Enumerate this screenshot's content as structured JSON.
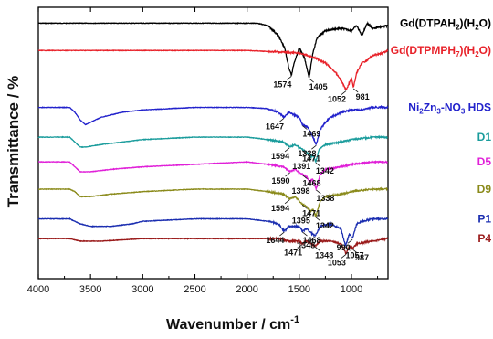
{
  "chart_data": {
    "type": "line",
    "xlabel": "Wavenumber / cm",
    "xlabel_superscript": "-1",
    "ylabel": "Transmittance / %",
    "xlim": [
      4000,
      650
    ],
    "x_direction": "reversed",
    "y_ticks_shown": false,
    "grid": false,
    "legend": "none — series named by colored text at right end of each trace",
    "x_ticks": [
      "4000",
      "3500",
      "3000",
      "2500",
      "2000",
      "1500",
      "1000"
    ],
    "x_tick_values": [
      4000,
      3500,
      3000,
      2500,
      2000,
      1500,
      1000
    ],
    "series": [
      {
        "name_parts": [
          {
            "t": "Gd(DTPAH"
          },
          {
            "t": "2",
            "sub": true
          },
          {
            "t": ")(H"
          },
          {
            "t": "2",
            "sub": true
          },
          {
            "t": "O)"
          }
        ],
        "color": "#000000",
        "baseline_y": 0.02,
        "shape": [
          [
            4000,
            0.02
          ],
          [
            1900,
            0.02
          ],
          [
            1800,
            0.03
          ],
          [
            1700,
            0.07
          ],
          [
            1640,
            0.12
          ],
          [
            1600,
            0.2
          ],
          [
            1574,
            0.23
          ],
          [
            1550,
            0.18
          ],
          [
            1500,
            0.12
          ],
          [
            1450,
            0.16
          ],
          [
            1405,
            0.24
          ],
          [
            1370,
            0.14
          ],
          [
            1330,
            0.08
          ],
          [
            1250,
            0.05
          ],
          [
            1100,
            0.04
          ],
          [
            1000,
            0.05
          ],
          [
            950,
            0.03
          ],
          [
            900,
            0.07
          ],
          [
            850,
            0.02
          ],
          [
            800,
            0.04
          ],
          [
            650,
            0.03
          ]
        ],
        "peaks": [
          {
            "label": "1574"
          },
          {
            "label": "1405"
          }
        ]
      },
      {
        "name_parts": [
          {
            "t": "Gd(DTPMPH"
          },
          {
            "t": "7",
            "sub": true
          },
          {
            "t": ")(H"
          },
          {
            "t": "2",
            "sub": true
          },
          {
            "t": "O)"
          }
        ],
        "color": "#e8222a",
        "baseline_y": 0.13,
        "shape": [
          [
            4000,
            0.13
          ],
          [
            2000,
            0.13
          ],
          [
            1500,
            0.14
          ],
          [
            1350,
            0.16
          ],
          [
            1250,
            0.18
          ],
          [
            1150,
            0.22
          ],
          [
            1100,
            0.25
          ],
          [
            1052,
            0.29
          ],
          [
            1030,
            0.27
          ],
          [
            1000,
            0.24
          ],
          [
            981,
            0.28
          ],
          [
            950,
            0.22
          ],
          [
            900,
            0.18
          ],
          [
            850,
            0.17
          ],
          [
            800,
            0.15
          ],
          [
            700,
            0.14
          ],
          [
            650,
            0.13
          ]
        ],
        "peaks": [
          {
            "label": "1052"
          },
          {
            "label": "981"
          }
        ]
      },
      {
        "name_parts": [
          {
            "t": "Ni"
          },
          {
            "t": "2",
            "sub": true
          },
          {
            "t": "Zn"
          },
          {
            "t": "3",
            "sub": true
          },
          {
            "t": "-NO"
          },
          {
            "t": "3",
            "sub": true
          },
          {
            "t": " HDS"
          }
        ],
        "color": "#2222cc",
        "baseline_y": 0.36,
        "shape": [
          [
            4000,
            0.36
          ],
          [
            3700,
            0.36
          ],
          [
            3650,
            0.38
          ],
          [
            3600,
            0.41
          ],
          [
            3550,
            0.43
          ],
          [
            3500,
            0.42
          ],
          [
            3400,
            0.4
          ],
          [
            3200,
            0.38
          ],
          [
            3000,
            0.37
          ],
          [
            2500,
            0.36
          ],
          [
            2000,
            0.36
          ],
          [
            1800,
            0.365
          ],
          [
            1700,
            0.38
          ],
          [
            1647,
            0.4
          ],
          [
            1600,
            0.38
          ],
          [
            1500,
            0.4
          ],
          [
            1469,
            0.43
          ],
          [
            1420,
            0.44
          ],
          [
            1380,
            0.47
          ],
          [
            1338,
            0.51
          ],
          [
            1300,
            0.45
          ],
          [
            1250,
            0.42
          ],
          [
            1200,
            0.4
          ],
          [
            1100,
            0.38
          ],
          [
            1000,
            0.37
          ],
          [
            900,
            0.37
          ],
          [
            800,
            0.36
          ],
          [
            650,
            0.36
          ]
        ],
        "peaks": [
          {
            "label": "1647"
          },
          {
            "label": "1469"
          },
          {
            "label": "1338"
          }
        ]
      },
      {
        "name_parts": [
          {
            "t": "D1"
          }
        ],
        "color": "#1a9c9c",
        "baseline_y": 0.48,
        "shape": [
          [
            4000,
            0.48
          ],
          [
            3700,
            0.48
          ],
          [
            3650,
            0.5
          ],
          [
            3600,
            0.52
          ],
          [
            3550,
            0.52
          ],
          [
            3400,
            0.51
          ],
          [
            3200,
            0.5
          ],
          [
            3000,
            0.49
          ],
          [
            2500,
            0.48
          ],
          [
            2000,
            0.48
          ],
          [
            1800,
            0.49
          ],
          [
            1650,
            0.5
          ],
          [
            1594,
            0.52
          ],
          [
            1540,
            0.51
          ],
          [
            1471,
            0.53
          ],
          [
            1430,
            0.54
          ],
          [
            1391,
            0.56
          ],
          [
            1370,
            0.55
          ],
          [
            1342,
            0.58
          ],
          [
            1310,
            0.53
          ],
          [
            1250,
            0.51
          ],
          [
            1100,
            0.5
          ],
          [
            1000,
            0.49
          ],
          [
            800,
            0.48
          ],
          [
            650,
            0.48
          ]
        ],
        "peaks": [
          {
            "label": "1594"
          },
          {
            "label": "1471"
          },
          {
            "label": "1391"
          },
          {
            "label": "1342"
          }
        ]
      },
      {
        "name_parts": [
          {
            "t": "D5"
          }
        ],
        "color": "#e020d8",
        "baseline_y": 0.58,
        "shape": [
          [
            4000,
            0.58
          ],
          [
            3700,
            0.58
          ],
          [
            3650,
            0.6
          ],
          [
            3600,
            0.62
          ],
          [
            3500,
            0.62
          ],
          [
            3300,
            0.61
          ],
          [
            3000,
            0.6
          ],
          [
            2500,
            0.59
          ],
          [
            2000,
            0.58
          ],
          [
            1800,
            0.59
          ],
          [
            1650,
            0.6
          ],
          [
            1590,
            0.62
          ],
          [
            1540,
            0.61
          ],
          [
            1468,
            0.63
          ],
          [
            1430,
            0.64
          ],
          [
            1398,
            0.66
          ],
          [
            1370,
            0.65
          ],
          [
            1338,
            0.69
          ],
          [
            1300,
            0.63
          ],
          [
            1250,
            0.61
          ],
          [
            1100,
            0.6
          ],
          [
            1000,
            0.59
          ],
          [
            800,
            0.58
          ],
          [
            650,
            0.58
          ]
        ],
        "peaks": [
          {
            "label": "1590"
          },
          {
            "label": "1468"
          },
          {
            "label": "1398"
          },
          {
            "label": "1338"
          }
        ]
      },
      {
        "name_parts": [
          {
            "t": "D9"
          }
        ],
        "color": "#8a8a1a",
        "baseline_y": 0.69,
        "shape": [
          [
            4000,
            0.69
          ],
          [
            3700,
            0.69
          ],
          [
            3650,
            0.7
          ],
          [
            3600,
            0.72
          ],
          [
            3500,
            0.72
          ],
          [
            3300,
            0.71
          ],
          [
            3000,
            0.7
          ],
          [
            2500,
            0.69
          ],
          [
            2000,
            0.69
          ],
          [
            1800,
            0.7
          ],
          [
            1650,
            0.71
          ],
          [
            1594,
            0.73
          ],
          [
            1540,
            0.72
          ],
          [
            1471,
            0.75
          ],
          [
            1430,
            0.76
          ],
          [
            1395,
            0.78
          ],
          [
            1370,
            0.77
          ],
          [
            1342,
            0.8
          ],
          [
            1300,
            0.74
          ],
          [
            1250,
            0.72
          ],
          [
            1100,
            0.71
          ],
          [
            1000,
            0.7
          ],
          [
            800,
            0.69
          ],
          [
            650,
            0.69
          ]
        ],
        "peaks": [
          {
            "label": "1594"
          },
          {
            "label": "1471"
          },
          {
            "label": "1395"
          },
          {
            "label": "1342"
          }
        ]
      },
      {
        "name_parts": [
          {
            "t": "P1"
          }
        ],
        "color": "#1a2db0",
        "baseline_y": 0.81,
        "shape": [
          [
            4000,
            0.81
          ],
          [
            3700,
            0.81
          ],
          [
            3650,
            0.82
          ],
          [
            3600,
            0.83
          ],
          [
            3500,
            0.84
          ],
          [
            3300,
            0.84
          ],
          [
            3100,
            0.83
          ],
          [
            3000,
            0.82
          ],
          [
            2500,
            0.81
          ],
          [
            2000,
            0.81
          ],
          [
            1800,
            0.82
          ],
          [
            1700,
            0.83
          ],
          [
            1644,
            0.86
          ],
          [
            1600,
            0.84
          ],
          [
            1500,
            0.84
          ],
          [
            1468,
            0.86
          ],
          [
            1430,
            0.85
          ],
          [
            1348,
            0.88
          ],
          [
            1300,
            0.84
          ],
          [
            1200,
            0.83
          ],
          [
            1100,
            0.85
          ],
          [
            1057,
            0.92
          ],
          [
            1020,
            0.87
          ],
          [
            990,
            0.89
          ],
          [
            950,
            0.83
          ],
          [
            900,
            0.82
          ],
          [
            800,
            0.81
          ],
          [
            650,
            0.81
          ]
        ],
        "peaks": [
          {
            "label": "1644"
          },
          {
            "label": "1468"
          },
          {
            "label": "1348"
          },
          {
            "label": "1057"
          },
          {
            "label": "990"
          }
        ]
      },
      {
        "name_parts": [
          {
            "t": "P4"
          }
        ],
        "color": "#9a1a1a",
        "baseline_y": 0.89,
        "shape": [
          [
            4000,
            0.89
          ],
          [
            3700,
            0.89
          ],
          [
            3600,
            0.9
          ],
          [
            3400,
            0.9
          ],
          [
            3000,
            0.89
          ],
          [
            2000,
            0.89
          ],
          [
            1700,
            0.89
          ],
          [
            1600,
            0.9
          ],
          [
            1500,
            0.9
          ],
          [
            1471,
            0.91
          ],
          [
            1430,
            0.9
          ],
          [
            1348,
            0.92
          ],
          [
            1300,
            0.9
          ],
          [
            1200,
            0.9
          ],
          [
            1100,
            0.91
          ],
          [
            1053,
            0.95
          ],
          [
            1020,
            0.92
          ],
          [
            987,
            0.93
          ],
          [
            950,
            0.91
          ],
          [
            800,
            0.9
          ],
          [
            650,
            0.89
          ]
        ],
        "peaks": [
          {
            "label": "1471"
          },
          {
            "label": "1348"
          },
          {
            "label": "1053"
          },
          {
            "label": "987"
          }
        ]
      }
    ]
  }
}
